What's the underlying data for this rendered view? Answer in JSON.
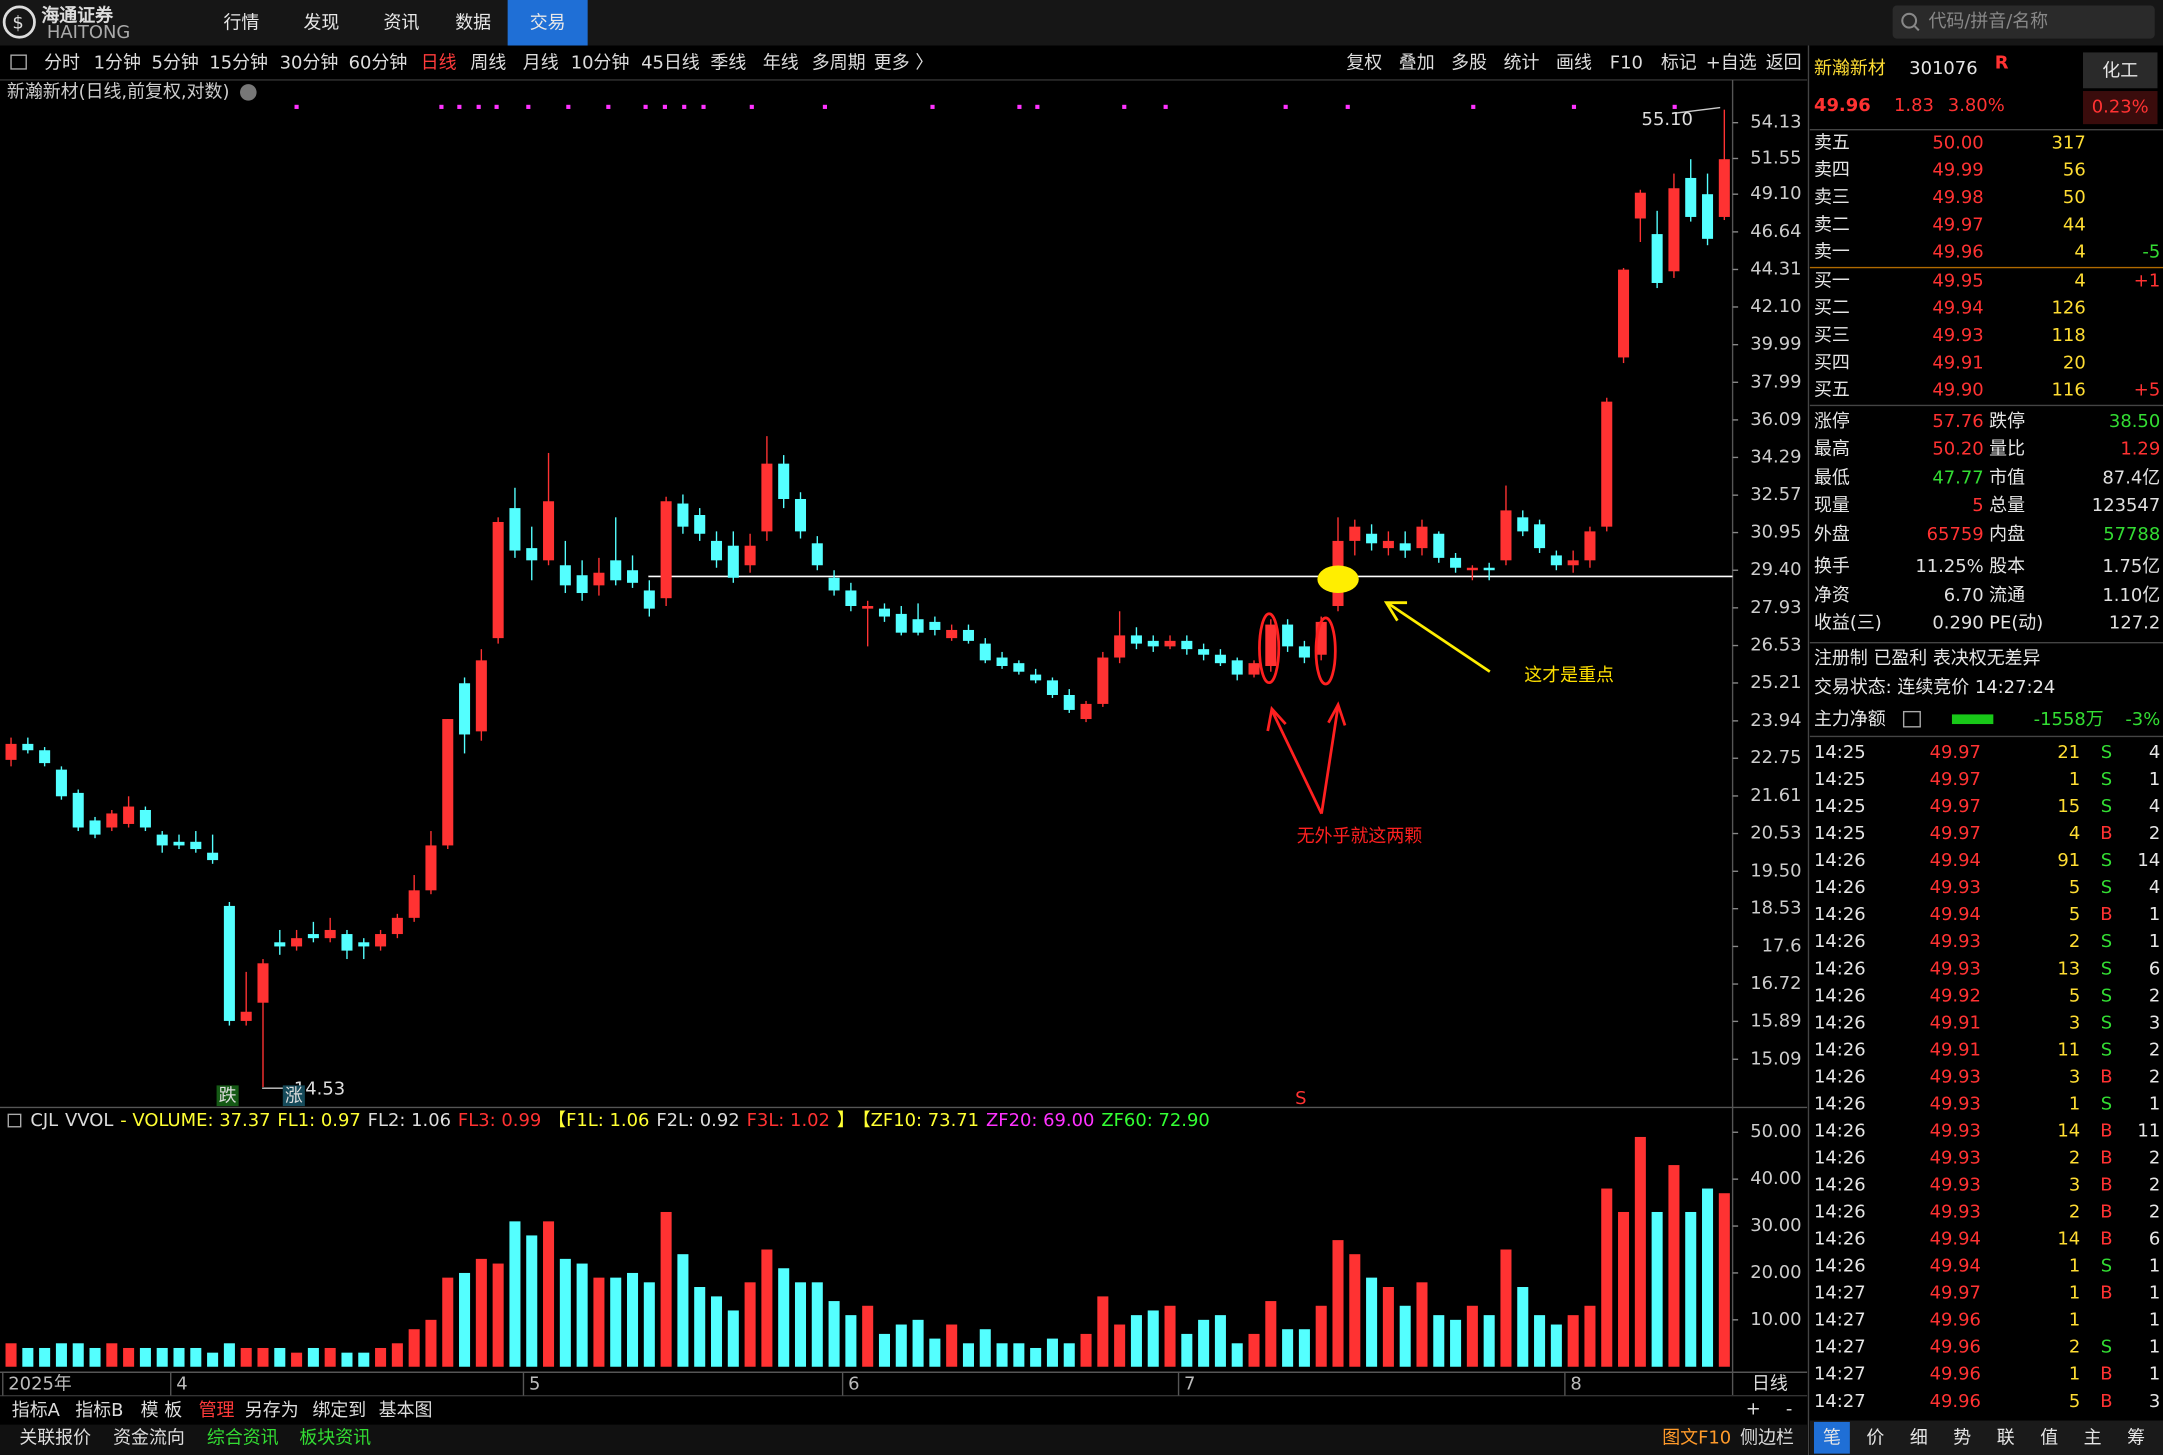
{
  "header": {
    "logo": "海通证券",
    "logo_en": "HAITONG",
    "nav": [
      "行情",
      "发现",
      "资讯",
      "数据",
      "交易"
    ],
    "active": 4,
    "search": "代码/拼音/名称"
  },
  "toolbar": {
    "periods": [
      "分时",
      "1分钟",
      "5分钟",
      "15分钟",
      "30分钟",
      "60分钟",
      "日线",
      "周线",
      "月线",
      "10分钟",
      "45日线",
      "季线",
      "年线",
      "多周期",
      "更多 〉"
    ],
    "active": 6,
    "tools": [
      "复权",
      "叠加",
      "多股",
      "统计",
      "画线",
      "F10",
      "标记",
      "+自选",
      "返回"
    ]
  },
  "chart_data": {
    "type": "candlestick",
    "title": "新瀚新材(日线,前复权,对数)",
    "log_scale": true,
    "up_color": "#ff3232",
    "down_color": "#54ffff",
    "ylim": [
      14.21,
      55.57
    ],
    "yticks": [
      54.13,
      51.55,
      {
        "value": 49.1,
        "label": "49.10"
      },
      46.64,
      44.31,
      {
        "value": 42.1,
        "label": "42.10"
      },
      39.99,
      37.99,
      36.09,
      34.29,
      32.57,
      30.95,
      {
        "value": 29.4,
        "label": "29.40"
      },
      27.93,
      26.53,
      25.21,
      23.94,
      22.75,
      21.61,
      20.53,
      {
        "value": 19.5,
        "label": "19.50"
      },
      18.53,
      17.6,
      16.72,
      15.89,
      15.09
    ],
    "categories": [
      "2025年",
      null,
      null,
      null,
      null,
      null,
      null,
      null,
      null,
      null,
      "4",
      null,
      null,
      null,
      null,
      null,
      null,
      null,
      null,
      null,
      null,
      null,
      null,
      null,
      null,
      null,
      null,
      null,
      null,
      null,
      null,
      "5",
      null,
      null,
      null,
      null,
      null,
      null,
      null,
      null,
      null,
      null,
      null,
      null,
      null,
      null,
      null,
      null,
      null,
      null,
      "6",
      null,
      null,
      null,
      null,
      null,
      null,
      null,
      null,
      null,
      null,
      null,
      null,
      null,
      null,
      null,
      null,
      null,
      null,
      null,
      "7",
      null,
      null,
      null,
      null,
      null,
      null,
      null,
      null,
      null,
      null,
      null,
      null,
      null,
      null,
      null,
      null,
      null,
      null,
      null,
      null,
      null,
      null,
      "8",
      null,
      null,
      null,
      null,
      null,
      null,
      null,
      null,
      null
    ],
    "candles": [
      [
        22.7,
        23.4,
        22.5,
        23.2
      ],
      [
        23.2,
        23.4,
        22.9,
        23.0
      ],
      [
        23.0,
        23.1,
        22.5,
        22.6
      ],
      [
        22.4,
        22.5,
        21.5,
        21.6
      ],
      [
        21.7,
        21.8,
        20.6,
        20.7
      ],
      [
        20.9,
        21.0,
        20.4,
        20.5
      ],
      [
        20.7,
        21.2,
        20.6,
        21.1
      ],
      [
        20.8,
        21.6,
        20.7,
        21.3
      ],
      [
        21.2,
        21.3,
        20.6,
        20.7
      ],
      [
        20.5,
        20.6,
        20.0,
        20.2
      ],
      [
        20.3,
        20.5,
        20.1,
        20.2
      ],
      [
        20.3,
        20.6,
        20.0,
        20.1
      ],
      [
        20.0,
        20.5,
        19.7,
        19.8
      ],
      [
        18.6,
        18.7,
        15.8,
        15.9
      ],
      [
        15.9,
        17.0,
        15.8,
        16.1
      ],
      [
        16.3,
        17.3,
        14.53,
        17.2
      ],
      [
        17.7,
        18.0,
        17.4,
        17.6
      ],
      [
        17.6,
        18.0,
        17.5,
        17.8
      ],
      [
        17.9,
        18.2,
        17.7,
        17.8
      ],
      [
        17.8,
        18.3,
        17.7,
        18.0
      ],
      [
        17.9,
        18.0,
        17.3,
        17.5
      ],
      [
        17.7,
        17.8,
        17.3,
        17.6
      ],
      [
        17.6,
        18.0,
        17.5,
        17.9
      ],
      [
        17.9,
        18.4,
        17.8,
        18.3
      ],
      [
        18.3,
        19.4,
        18.2,
        19.0
      ],
      [
        19.0,
        20.6,
        18.9,
        20.2
      ],
      [
        20.2,
        24.0,
        20.1,
        24.0
      ],
      [
        25.2,
        25.4,
        22.9,
        23.5
      ],
      [
        23.6,
        26.4,
        23.3,
        26.0
      ],
      [
        26.8,
        31.6,
        26.6,
        31.4
      ],
      [
        32.0,
        32.9,
        29.9,
        30.2
      ],
      [
        30.3,
        31.2,
        29.0,
        29.8
      ],
      [
        29.8,
        34.5,
        29.6,
        32.3
      ],
      [
        29.6,
        30.6,
        28.5,
        28.8
      ],
      [
        29.2,
        29.8,
        28.2,
        28.5
      ],
      [
        28.8,
        29.9,
        28.4,
        29.3
      ],
      [
        29.8,
        31.6,
        28.8,
        29.0
      ],
      [
        29.4,
        30.0,
        28.7,
        28.9
      ],
      [
        28.6,
        29.0,
        27.6,
        27.9
      ],
      [
        28.3,
        32.5,
        28.0,
        32.3
      ],
      [
        32.2,
        32.6,
        30.9,
        31.2
      ],
      [
        31.7,
        32.0,
        30.6,
        30.9
      ],
      [
        30.6,
        31.0,
        29.5,
        29.8
      ],
      [
        30.4,
        31.0,
        28.9,
        29.1
      ],
      [
        29.6,
        30.9,
        29.3,
        30.4
      ],
      [
        31.0,
        35.3,
        30.6,
        34.0
      ],
      [
        34.0,
        34.4,
        32.0,
        32.4
      ],
      [
        32.4,
        32.7,
        30.7,
        31.0
      ],
      [
        30.5,
        30.8,
        29.4,
        29.6
      ],
      [
        29.1,
        29.4,
        28.4,
        28.6
      ],
      [
        28.6,
        28.9,
        27.8,
        28.0
      ],
      [
        27.9,
        28.2,
        26.5,
        28.0
      ],
      [
        27.9,
        28.1,
        27.4,
        27.6
      ],
      [
        27.7,
        28.0,
        26.9,
        27.0
      ],
      [
        27.5,
        28.1,
        26.9,
        27.0
      ],
      [
        27.4,
        27.6,
        26.9,
        27.1
      ],
      [
        26.8,
        27.3,
        26.7,
        27.1
      ],
      [
        27.1,
        27.3,
        26.6,
        26.7
      ],
      [
        26.6,
        26.8,
        25.9,
        26.0
      ],
      [
        26.1,
        26.3,
        25.7,
        25.8
      ],
      [
        25.9,
        26.0,
        25.5,
        25.6
      ],
      [
        25.5,
        25.7,
        25.2,
        25.3
      ],
      [
        25.3,
        25.4,
        24.7,
        24.8
      ],
      [
        24.8,
        25.0,
        24.2,
        24.3
      ],
      [
        24.0,
        24.6,
        23.9,
        24.5
      ],
      [
        24.5,
        26.3,
        24.4,
        26.1
      ],
      [
        26.1,
        27.8,
        25.9,
        26.9
      ],
      [
        26.9,
        27.2,
        26.4,
        26.6
      ],
      [
        26.7,
        26.9,
        26.3,
        26.5
      ],
      [
        26.5,
        26.9,
        26.4,
        26.7
      ],
      [
        26.7,
        26.9,
        26.2,
        26.4
      ],
      [
        26.4,
        26.6,
        26.0,
        26.2
      ],
      [
        26.2,
        26.4,
        25.8,
        25.9
      ],
      [
        26.0,
        26.1,
        25.3,
        25.5
      ],
      [
        25.5,
        26.0,
        25.4,
        25.9
      ],
      [
        25.8,
        27.5,
        25.6,
        27.3
      ],
      [
        27.3,
        27.5,
        26.3,
        26.5
      ],
      [
        26.5,
        26.7,
        25.9,
        26.1
      ],
      [
        26.2,
        27.6,
        26.0,
        27.4
      ],
      [
        28.0,
        31.6,
        27.8,
        30.6
      ],
      [
        30.6,
        31.5,
        30.0,
        31.2
      ],
      [
        30.9,
        31.3,
        30.2,
        30.5
      ],
      [
        30.3,
        31.0,
        30.0,
        30.6
      ],
      [
        30.5,
        31.0,
        29.9,
        30.2
      ],
      [
        30.3,
        31.5,
        30.0,
        31.2
      ],
      [
        30.9,
        31.0,
        29.7,
        29.9
      ],
      [
        29.9,
        30.1,
        29.3,
        29.5
      ],
      [
        29.4,
        29.6,
        29.0,
        29.5
      ],
      [
        29.5,
        29.7,
        29.0,
        29.4
      ],
      [
        29.8,
        33.0,
        29.6,
        31.9
      ],
      [
        31.6,
        31.9,
        30.8,
        31.0
      ],
      [
        31.3,
        31.5,
        30.1,
        30.3
      ],
      [
        30.0,
        30.2,
        29.4,
        29.6
      ],
      [
        29.6,
        30.2,
        29.3,
        29.8
      ],
      [
        29.8,
        31.2,
        29.5,
        31.0
      ],
      [
        31.2,
        37.2,
        31.0,
        37.0
      ],
      [
        39.3,
        44.4,
        39.0,
        44.3
      ],
      [
        47.5,
        49.4,
        46.0,
        49.2
      ],
      [
        46.5,
        48.0,
        43.2,
        43.5
      ],
      [
        44.2,
        50.5,
        43.8,
        49.5
      ],
      [
        50.2,
        51.5,
        47.3,
        47.6
      ],
      [
        49.1,
        50.5,
        45.8,
        46.2
      ],
      [
        47.6,
        55.1,
        47.4,
        51.5
      ]
    ],
    "volume": [
      5,
      4,
      4,
      5,
      5,
      4,
      5,
      4,
      4,
      4,
      4,
      4,
      3,
      5,
      4,
      4,
      4,
      3,
      4,
      4,
      3,
      3,
      4,
      5,
      8,
      10,
      19,
      20,
      23,
      22,
      31,
      28,
      31,
      23,
      22,
      19,
      19,
      20,
      18,
      33,
      24,
      17,
      15,
      12,
      18,
      25,
      21,
      18,
      18,
      14,
      11,
      13,
      7,
      9,
      10,
      6,
      9,
      5,
      8,
      5,
      5,
      4,
      6,
      5,
      7,
      15,
      9,
      11,
      12,
      13,
      7,
      10,
      11,
      5,
      7,
      14,
      8,
      8,
      13,
      27,
      24,
      19,
      17,
      13,
      18,
      11,
      10,
      13,
      11,
      25,
      17,
      11,
      9,
      11,
      13,
      38,
      33,
      49,
      33,
      43,
      33,
      38,
      37
    ],
    "volume_ylim": [
      0,
      54.7
    ],
    "volume_yticks": [
      {
        "value": 50,
        "label": "50.00"
      },
      {
        "value": 40,
        "label": "40.00"
      },
      {
        "value": 30,
        "label": "30.00"
      },
      {
        "value": 20,
        "label": "20.00"
      },
      {
        "value": 10,
        "label": "10.00"
      }
    ],
    "annotations": {
      "high": "55.10",
      "low": "14.53",
      "down_tag": "跌",
      "up_tag": "涨",
      "signal": "S",
      "key": "这才是重点",
      "pair": "无外乎就这两颗"
    }
  },
  "indicator": [
    {
      "text": "CJL",
      "color": "#dddddd"
    },
    {
      "text": "VVOL",
      "color": "#dddddd"
    },
    {
      "text": "- VOLUME: 37.37",
      "color": "#ffff33"
    },
    {
      "text": "FL1: 0.97",
      "color": "#ffff33"
    },
    {
      "text": "FL2: 1.06",
      "color": "#dddddd"
    },
    {
      "text": "FL3: 0.99",
      "color": "#ff3232"
    },
    {
      "text": "【F1L: 1.06",
      "color": "#ffff33"
    },
    {
      "text": "F2L: 0.92",
      "color": "#dddddd"
    },
    {
      "text": "F3L: 1.02",
      "color": "#ff3232"
    },
    {
      "text": "】",
      "color": "#ffff33"
    },
    {
      "text": "【ZF10: 73.71",
      "color": "#ffff33"
    },
    {
      "text": "ZF20: 69.00",
      "color": "#ff33ff"
    },
    {
      "text": "ZF60: 72.90",
      "color": "#33ff33"
    }
  ],
  "footer": {
    "period": "日线",
    "tabs": [
      "指标A",
      "指标B",
      "模 板",
      "管理",
      "另存为",
      "绑定到",
      "基本图"
    ],
    "active": 3,
    "plus": "+",
    "minus": "-",
    "links": [
      "关联报价",
      "资金流向",
      "综合资讯",
      "板块资讯"
    ],
    "green_links": [
      2,
      3
    ],
    "right": [
      "图文F10",
      "侧边栏"
    ]
  },
  "quote": {
    "name": "新瀚新材",
    "code": "301076",
    "flag": "R",
    "sector": "化工",
    "sector_change": "0.23%",
    "price": "49.96",
    "change": "1.83",
    "pct": "3.80%",
    "asks": [
      [
        "卖五",
        "50.00",
        "317"
      ],
      [
        "卖四",
        "49.99",
        "56"
      ],
      [
        "卖三",
        "49.98",
        "50"
      ],
      [
        "卖二",
        "49.97",
        "44"
      ],
      [
        "卖一",
        "49.96",
        "4",
        "-5"
      ]
    ],
    "bids": [
      [
        "买一",
        "49.95",
        "4",
        "+1"
      ],
      [
        "买二",
        "49.94",
        "126"
      ],
      [
        "买三",
        "49.93",
        "118"
      ],
      [
        "买四",
        "49.91",
        "20"
      ],
      [
        "买五",
        "49.90",
        "116",
        "+5"
      ]
    ],
    "stats": [
      [
        {
          "label": "涨停",
          "value": "57.76",
          "color": "#ff3232"
        },
        {
          "label": "跌停",
          "value": "38.50",
          "color": "#33dd33"
        }
      ],
      [
        {
          "label": "最高",
          "value": "50.20",
          "color": "#ff3232"
        },
        {
          "label": "量比",
          "value": "1.29",
          "color": "#ff3232"
        }
      ],
      [
        {
          "label": "最低",
          "value": "47.77",
          "color": "#33dd33"
        },
        {
          "label": "市值",
          "value": "87.4亿",
          "color": "#e0e0e0"
        }
      ],
      [
        {
          "label": "现量",
          "value": "5",
          "color": "#ff3232"
        },
        {
          "label": "总量",
          "value": "123547",
          "color": "#e0e0e0"
        }
      ],
      [
        {
          "label": "外盘",
          "value": "65759",
          "color": "#ff3232"
        },
        {
          "label": "内盘",
          "value": "57788",
          "color": "#33dd33"
        }
      ],
      [
        {
          "label": "换手",
          "value": "11.25%",
          "color": "#e0e0e0"
        },
        {
          "label": "股本",
          "value": "1.75亿",
          "color": "#e0e0e0"
        }
      ],
      [
        {
          "label": "净资",
          "value": "6.70",
          "color": "#e0e0e0"
        },
        {
          "label": "流通",
          "value": "1.10亿",
          "color": "#e0e0e0"
        }
      ],
      [
        {
          "label": "收益(三)",
          "value": "0.290",
          "color": "#e0e0e0"
        },
        {
          "label": "PE(动)",
          "value": "127.2",
          "color": "#e0e0e0"
        }
      ]
    ],
    "tags": "注册制 已盈利 表决权无差异",
    "status": "交易状态: 连续竞价 14:27:24",
    "flow": {
      "label": "主力净额",
      "value": "-1558万",
      "pct": "-3%"
    },
    "ticks": [
      {
        "t": "14:25",
        "p": "49.97",
        "v": "21",
        "f": "S",
        "n": "4"
      },
      {
        "t": "14:25",
        "p": "49.97",
        "v": "1",
        "f": "S",
        "n": "1"
      },
      {
        "t": "14:25",
        "p": "49.97",
        "v": "15",
        "f": "S",
        "n": "4"
      },
      {
        "t": "14:25",
        "p": "49.97",
        "v": "4",
        "f": "B",
        "n": "2"
      },
      {
        "t": "14:26",
        "p": "49.94",
        "v": "91",
        "f": "S",
        "n": "14"
      },
      {
        "t": "14:26",
        "p": "49.93",
        "v": "5",
        "f": "S",
        "n": "4"
      },
      {
        "t": "14:26",
        "p": "49.94",
        "v": "5",
        "f": "B",
        "n": "1"
      },
      {
        "t": "14:26",
        "p": "49.93",
        "v": "2",
        "f": "S",
        "n": "1"
      },
      {
        "t": "14:26",
        "p": "49.93",
        "v": "13",
        "f": "S",
        "n": "6"
      },
      {
        "t": "14:26",
        "p": "49.92",
        "v": "5",
        "f": "S",
        "n": "2"
      },
      {
        "t": "14:26",
        "p": "49.91",
        "v": "3",
        "f": "S",
        "n": "3"
      },
      {
        "t": "14:26",
        "p": "49.91",
        "v": "11",
        "f": "S",
        "n": "2"
      },
      {
        "t": "14:26",
        "p": "49.93",
        "v": "3",
        "f": "B",
        "n": "2"
      },
      {
        "t": "14:26",
        "p": "49.93",
        "v": "1",
        "f": "S",
        "n": "1"
      },
      {
        "t": "14:26",
        "p": "49.93",
        "v": "14",
        "f": "B",
        "n": "11"
      },
      {
        "t": "14:26",
        "p": "49.93",
        "v": "2",
        "f": "B",
        "n": "2"
      },
      {
        "t": "14:26",
        "p": "49.93",
        "v": "3",
        "f": "B",
        "n": "2"
      },
      {
        "t": "14:26",
        "p": "49.93",
        "v": "2",
        "f": "B",
        "n": "2"
      },
      {
        "t": "14:26",
        "p": "49.94",
        "v": "14",
        "f": "B",
        "n": "6"
      },
      {
        "t": "14:26",
        "p": "49.94",
        "v": "1",
        "f": "S",
        "n": "1"
      },
      {
        "t": "14:27",
        "p": "49.97",
        "v": "1",
        "f": "B",
        "n": "1"
      },
      {
        "t": "14:27",
        "p": "49.96",
        "v": "1",
        "n": "1"
      },
      {
        "t": "14:27",
        "p": "49.96",
        "v": "2",
        "f": "S",
        "n": "1"
      },
      {
        "t": "14:27",
        "p": "49.96",
        "v": "1",
        "f": "B",
        "n": "1"
      },
      {
        "t": "14:27",
        "p": "49.96",
        "v": "5",
        "f": "B",
        "n": "3"
      }
    ],
    "tabs": [
      "笔",
      "价",
      "细",
      "势",
      "联",
      "值",
      "主",
      "筹"
    ],
    "active_tab": 0
  }
}
